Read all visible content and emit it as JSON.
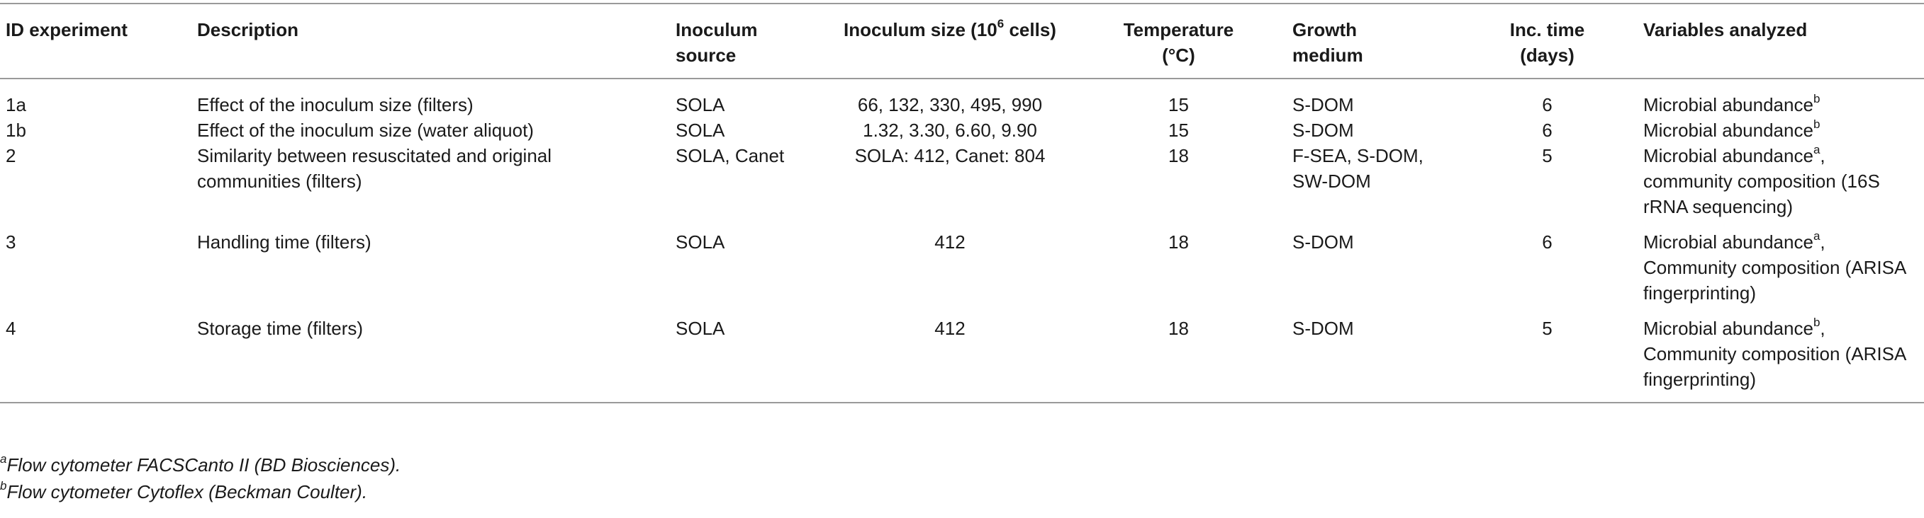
{
  "header": {
    "id": "ID experiment",
    "description": "Description",
    "source": "Inoculum source",
    "size": "Inoculum size (10",
    "size_sup": "6",
    "size_tail": " cells)",
    "temperature": "Temperature (°C)",
    "medium": "Growth medium",
    "inc_time": "Inc. time (days)",
    "variables": "Variables analyzed"
  },
  "rows": [
    {
      "id": "1a",
      "description": "Effect of the inoculum size (filters)",
      "source": "SOLA",
      "size": "66, 132, 330, 495, 990",
      "temperature": "15",
      "medium": "S-DOM",
      "inc_time": "6",
      "variables": [
        {
          "text": "Microbial abundance",
          "sup": "b"
        }
      ]
    },
    {
      "id": "1b",
      "description": "Effect of the inoculum size (water aliquot)",
      "source": "SOLA",
      "size": "1.32, 3.30, 6.60, 9.90",
      "temperature": "15",
      "medium": "S-DOM",
      "inc_time": "6",
      "variables": [
        {
          "text": "Microbial abundance",
          "sup": "b"
        }
      ]
    },
    {
      "id": "2",
      "description": "Similarity between resuscitated and original communities (filters)",
      "source": "SOLA, Canet",
      "size": "SOLA: 412, Canet: 804",
      "temperature": "18",
      "medium": "F-SEA, S-DOM, SW-DOM",
      "inc_time": "5",
      "variables": [
        {
          "text": "Microbial abundance",
          "sup": "a",
          "tail": ","
        },
        {
          "text": "community composition (16S rRNA sequencing)"
        }
      ]
    },
    {
      "id": "3",
      "description": "Handling time (filters)",
      "source": "SOLA",
      "size": "412",
      "temperature": "18",
      "medium": "S-DOM",
      "inc_time": "6",
      "variables": [
        {
          "text": "Microbial abundance",
          "sup": "a",
          "tail": ","
        },
        {
          "text": "Community composition (ARISA fingerprinting)"
        }
      ]
    },
    {
      "id": "4",
      "description": "Storage time (filters)",
      "source": "SOLA",
      "size": "412",
      "temperature": "18",
      "medium": "S-DOM",
      "inc_time": "5",
      "variables": [
        {
          "text": "Microbial abundance",
          "sup": "b",
          "tail": ","
        },
        {
          "text": "Community composition (ARISA fingerprinting)"
        }
      ]
    }
  ],
  "footnotes": [
    {
      "mark": "a",
      "text": "Flow cytometer FACSCanto II (BD Biosciences)."
    },
    {
      "mark": "b",
      "text": "Flow cytometer Cytoflex (Beckman Coulter)."
    }
  ]
}
